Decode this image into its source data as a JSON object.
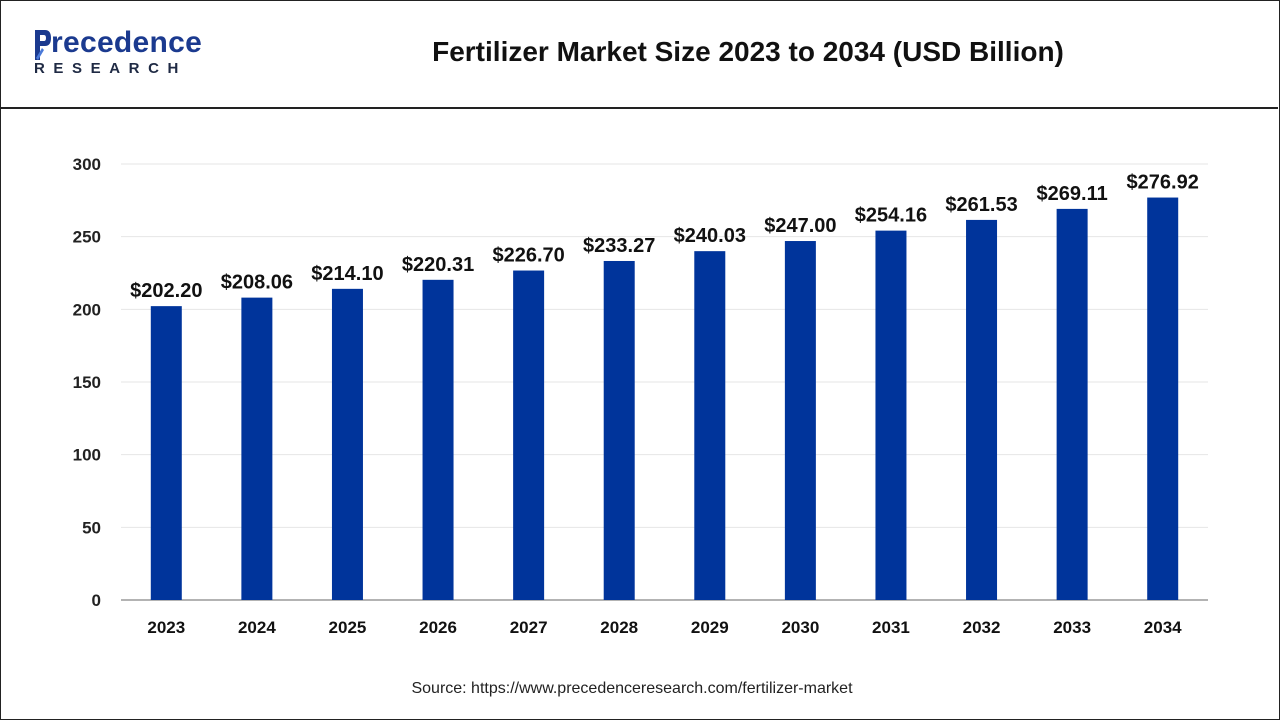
{
  "header": {
    "logo_main": "recedence",
    "logo_sub": "RESEARCH",
    "title": "Fertilizer Market Size 2023 to 2034 (USD Billion)"
  },
  "footer": {
    "source": "Source: https://www.precedenceresearch.com/fertilizer-market"
  },
  "colors": {
    "bar": "#00349b",
    "grid": "#e6e6e6",
    "axis": "#9a9a9a",
    "brand": "#1b3a8f"
  },
  "chart_data": {
    "type": "bar",
    "title": "Fertilizer Market Size 2023 to 2034 (USD Billion)",
    "xlabel": "",
    "ylabel": "",
    "ylim": [
      0,
      300
    ],
    "yticks": [
      0,
      50,
      100,
      150,
      200,
      250,
      300
    ],
    "grid": true,
    "legend": "none",
    "categories": [
      "2023",
      "2024",
      "2025",
      "2026",
      "2027",
      "2028",
      "2029",
      "2030",
      "2031",
      "2032",
      "2033",
      "2034"
    ],
    "values": [
      202.2,
      208.06,
      214.1,
      220.31,
      226.7,
      233.27,
      240.03,
      247.0,
      254.16,
      261.53,
      269.11,
      276.92
    ],
    "data_labels": [
      "$202.20",
      "$208.06",
      "$214.10",
      "$220.31",
      "$226.70",
      "$233.27",
      "$240.03",
      "$247.00",
      "$254.16",
      "$261.53",
      "$269.11",
      "$276.92"
    ]
  }
}
